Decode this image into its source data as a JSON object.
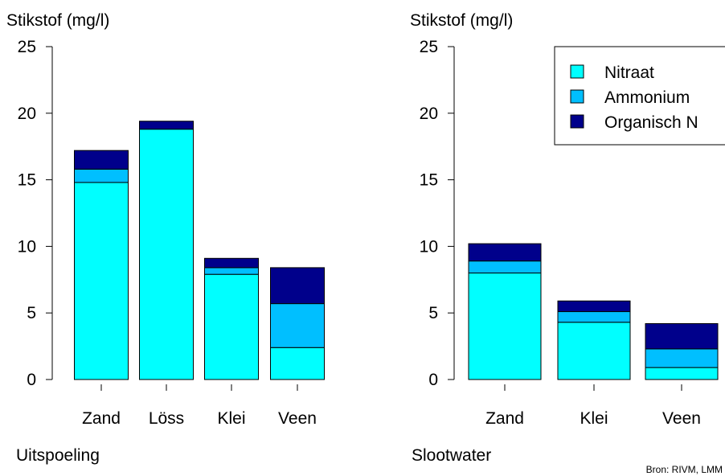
{
  "chart_data": [
    {
      "type": "bar",
      "stacked": true,
      "title": "Uitspoeling",
      "ylabel": "Stikstof (mg/l)",
      "xlabel": "",
      "ylim": [
        0,
        25
      ],
      "yticks": [
        "0",
        "5",
        "10",
        "15",
        "20",
        "25"
      ],
      "categories": [
        "Zand",
        "Löss",
        "Klei",
        "Veen"
      ],
      "series": [
        {
          "name": "Nitraat",
          "color": "#00FFFF",
          "values": [
            14.8,
            18.8,
            7.9,
            2.4
          ]
        },
        {
          "name": "Ammonium",
          "color": "#00BFFF",
          "values": [
            1.0,
            0.0,
            0.5,
            3.3
          ]
        },
        {
          "name": "Organisch N",
          "color": "#00008B",
          "values": [
            1.4,
            0.6,
            0.7,
            2.7
          ]
        }
      ],
      "legend": null,
      "grid": false
    },
    {
      "type": "bar",
      "stacked": true,
      "title": "Slootwater",
      "ylabel": "Stikstof (mg/l)",
      "xlabel": "",
      "ylim": [
        0,
        25
      ],
      "yticks": [
        "0",
        "5",
        "10",
        "15",
        "20",
        "25"
      ],
      "categories": [
        "Zand",
        "Klei",
        "Veen"
      ],
      "series": [
        {
          "name": "Nitraat",
          "color": "#00FFFF",
          "values": [
            8.0,
            4.3,
            0.9
          ]
        },
        {
          "name": "Ammonium",
          "color": "#00BFFF",
          "values": [
            0.9,
            0.8,
            1.4
          ]
        },
        {
          "name": "Organisch N",
          "color": "#00008B",
          "values": [
            1.3,
            0.8,
            1.9
          ]
        }
      ],
      "legend": "top-right",
      "grid": false
    }
  ],
  "source_note": "Bron: RIVM, LMM"
}
